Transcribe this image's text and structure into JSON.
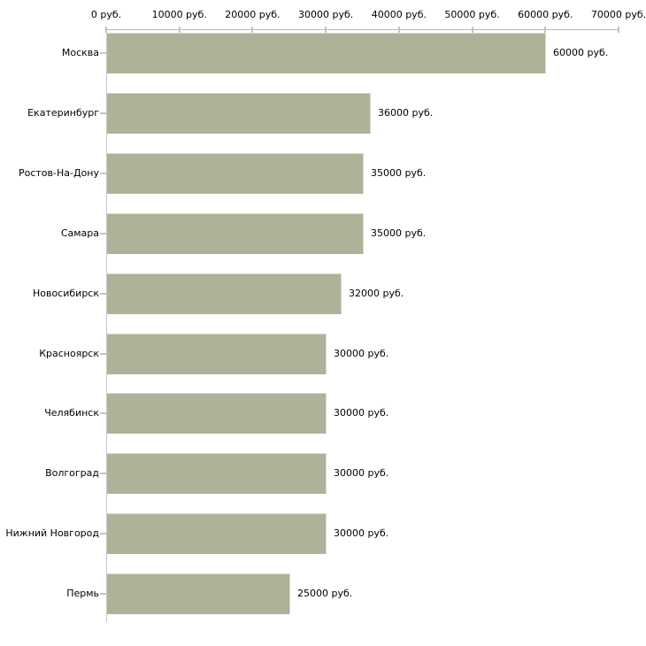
{
  "chart_data": {
    "type": "bar",
    "orientation": "horizontal",
    "title": "",
    "xlabel": "",
    "ylabel": "",
    "xlim": [
      0,
      70000
    ],
    "grid": false,
    "legend": "none",
    "bar_color": "#adb398",
    "bar_highlight_color": "#d7dac8",
    "axis_line_color": "#b8b8b8",
    "tick_color": "#c8c8a0",
    "categories": [
      "Москва",
      "Екатеринбург",
      "Ростов-На-Дону",
      "Самара",
      "Новосибирск",
      "Красноярск",
      "Челябинск",
      "Волгоград",
      "Нижний Новгород",
      "Пермь"
    ],
    "values": [
      60000,
      36000,
      35000,
      35000,
      32000,
      30000,
      30000,
      30000,
      30000,
      25000
    ],
    "value_labels": [
      "60000 руб.",
      "36000 руб.",
      "35000 руб.",
      "35000 руб.",
      "32000 руб.",
      "30000 руб.",
      "30000 руб.",
      "30000 руб.",
      "30000 руб.",
      "25000 руб."
    ],
    "x_ticks": [
      0,
      10000,
      20000,
      30000,
      40000,
      50000,
      60000,
      70000
    ],
    "x_tick_labels": [
      "0 руб.",
      "10000 руб.",
      "20000 руб.",
      "30000 руб.",
      "40000 руб.",
      "50000 руб.",
      "60000 руб.",
      "70000 руб."
    ]
  }
}
